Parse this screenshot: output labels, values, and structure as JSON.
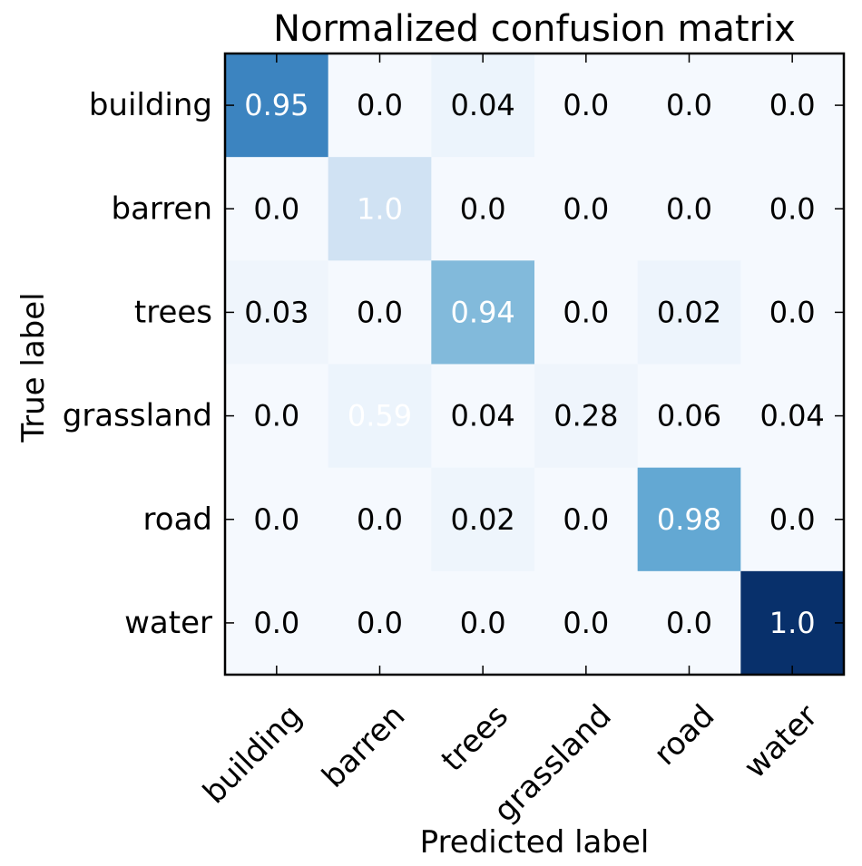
{
  "chart_data": {
    "type": "heatmap",
    "title": "Normalized confusion matrix",
    "xlabel": "Predicted label",
    "ylabel": "True label",
    "x_categories": [
      "building",
      "barren",
      "trees",
      "grassland",
      "road",
      "water"
    ],
    "y_categories": [
      "building",
      "barren",
      "trees",
      "grassland",
      "road",
      "water"
    ],
    "colormap": "Blues",
    "value_labels": [
      [
        "0.95",
        "0.0",
        "0.04",
        "0.0",
        "0.0",
        "0.0"
      ],
      [
        "0.0",
        "1.0",
        "0.0",
        "0.0",
        "0.0",
        "0.0"
      ],
      [
        "0.03",
        "0.0",
        "0.94",
        "0.0",
        "0.02",
        "0.0"
      ],
      [
        "0.0",
        "0.59",
        "0.04",
        "0.28",
        "0.06",
        "0.04"
      ],
      [
        "0.0",
        "0.0",
        "0.02",
        "0.0",
        "0.98",
        "0.0"
      ],
      [
        "0.0",
        "0.0",
        "0.0",
        "0.0",
        "0.0",
        "1.0"
      ]
    ],
    "cell_colors": [
      [
        "#3c84c0",
        "#f5f9fe",
        "#ecf4fc",
        "#f5f9fe",
        "#f5f9fe",
        "#f5f9fe"
      ],
      [
        "#f5f9fe",
        "#d0e2f3",
        "#f5f9fe",
        "#f5f9fe",
        "#f5f9fe",
        "#f5f9fe"
      ],
      [
        "#eff5fc",
        "#f5f9fe",
        "#82badb",
        "#f5f9fe",
        "#edf4fc",
        "#f5f9fe"
      ],
      [
        "#f5f9fe",
        "#ecf4fc",
        "#f5f9fe",
        "#eff5fc",
        "#f5f9fe",
        "#f5f9fe"
      ],
      [
        "#f5f9fe",
        "#f5f9fe",
        "#eef5fc",
        "#f5f9fe",
        "#63a8d3",
        "#f5f9fe"
      ],
      [
        "#f5f9fe",
        "#f5f9fe",
        "#f5f9fe",
        "#f5f9fe",
        "#f5f9fe",
        "#08306b"
      ]
    ],
    "text_colors": [
      [
        "#ffffff",
        "#000000",
        "#000000",
        "#000000",
        "#000000",
        "#000000"
      ],
      [
        "#000000",
        "#ffffff",
        "#000000",
        "#000000",
        "#000000",
        "#000000"
      ],
      [
        "#000000",
        "#000000",
        "#ffffff",
        "#000000",
        "#000000",
        "#000000"
      ],
      [
        "#000000",
        "#ffffff",
        "#000000",
        "#000000",
        "#000000",
        "#000000"
      ],
      [
        "#000000",
        "#000000",
        "#000000",
        "#000000",
        "#ffffff",
        "#000000"
      ],
      [
        "#000000",
        "#000000",
        "#000000",
        "#000000",
        "#000000",
        "#ffffff"
      ]
    ]
  }
}
